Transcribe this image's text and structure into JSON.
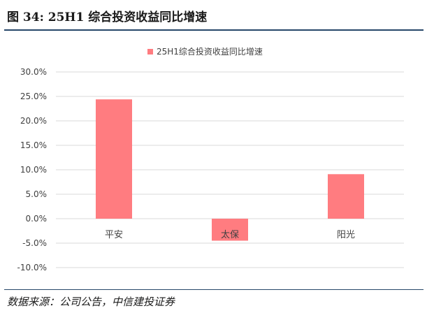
{
  "figure": {
    "title": "图 34: 25H1 综合投资收益同比增速",
    "source": "数据来源：公司公告，中信建投证券"
  },
  "chart_data": {
    "type": "bar",
    "legend": {
      "label": "25H1综合投资收益同比增速",
      "position": "top"
    },
    "categories": [
      "平安",
      "太保",
      "阳光"
    ],
    "series": [
      {
        "name": "25H1综合投资收益同比增速",
        "values": [
          24.4,
          -4.5,
          9.1
        ],
        "color": "#ff7c80"
      }
    ],
    "ylim": [
      -10,
      30
    ],
    "yticks": [
      30,
      25,
      20,
      15,
      10,
      5,
      0,
      -5,
      -10
    ],
    "ytick_labels": [
      "30.0%",
      "25.0%",
      "20.0%",
      "15.0%",
      "10.0%",
      "5.0%",
      "0.0%",
      "-5.0%",
      "-10.0%"
    ],
    "grid": true,
    "xlabel": "",
    "ylabel": ""
  }
}
